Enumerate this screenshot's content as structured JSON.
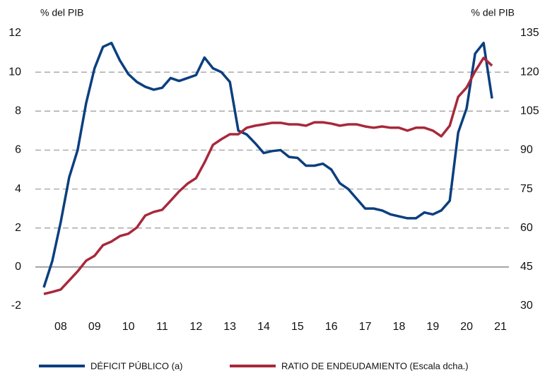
{
  "chart_data": {
    "type": "line",
    "y_label": "% del PIB",
    "y2_label": "% del PIB",
    "x": [
      2008,
      2008.25,
      2008.5,
      2008.75,
      2009,
      2009.25,
      2009.5,
      2009.75,
      2010,
      2010.25,
      2010.5,
      2010.75,
      2011,
      2011.25,
      2011.5,
      2011.75,
      2012,
      2012.25,
      2012.5,
      2012.75,
      2013,
      2013.25,
      2013.5,
      2013.75,
      2014,
      2014.25,
      2014.5,
      2014.75,
      2015,
      2015.25,
      2015.5,
      2015.75,
      2016,
      2016.25,
      2016.5,
      2016.75,
      2017,
      2017.25,
      2017.5,
      2017.75,
      2018,
      2018.25,
      2018.5,
      2018.75,
      2019,
      2019.25,
      2019.5,
      2019.75,
      2020,
      2020.25,
      2020.5,
      2020.75,
      2021,
      2021.25
    ],
    "xlim": [
      2007.75,
      2021.75
    ],
    "xticks": [
      {
        "value": 2008.5,
        "label": "08"
      },
      {
        "value": 2009.5,
        "label": "09"
      },
      {
        "value": 2010.5,
        "label": "10"
      },
      {
        "value": 2011.5,
        "label": "11"
      },
      {
        "value": 2012.5,
        "label": "12"
      },
      {
        "value": 2013.5,
        "label": "13"
      },
      {
        "value": 2014.5,
        "label": "14"
      },
      {
        "value": 2015.5,
        "label": "15"
      },
      {
        "value": 2016.5,
        "label": "16"
      },
      {
        "value": 2017.5,
        "label": "17"
      },
      {
        "value": 2018.5,
        "label": "18"
      },
      {
        "value": 2019.5,
        "label": "19"
      },
      {
        "value": 2020.5,
        "label": "20"
      },
      {
        "value": 2021.5,
        "label": "21"
      }
    ],
    "ylim": [
      -2,
      12
    ],
    "yticks": [
      -2,
      0,
      2,
      4,
      6,
      8,
      10,
      12
    ],
    "y2lim": [
      30,
      135
    ],
    "y2ticks": [
      30,
      45,
      60,
      75,
      90,
      105,
      120,
      135
    ],
    "grid": true,
    "legend": "bottom",
    "series": [
      {
        "name": "DÉFICIT PÚBLICO (a)",
        "color": "#0b3f7f",
        "values": [
          -1.05,
          0.3,
          2.3,
          4.6,
          6.0,
          8.4,
          10.2,
          11.3,
          11.5,
          10.6,
          9.9,
          9.5,
          9.25,
          9.1,
          9.2,
          9.7,
          9.55,
          9.7,
          9.85,
          10.75,
          10.2,
          10.0,
          9.5,
          7.0,
          6.8,
          6.35,
          5.85,
          5.95,
          6.0,
          5.65,
          5.6,
          5.2,
          5.2,
          5.3,
          5.0,
          4.3,
          4.0,
          3.5,
          3.0,
          3.0,
          2.9,
          2.7,
          2.6,
          2.5,
          2.5,
          2.8,
          2.7,
          2.9,
          3.4,
          6.9,
          8.15,
          10.95,
          11.5,
          8.65
        ]
      },
      {
        "name": "RATIO DE ENDEUDAMIENTO (Escala dcha.)",
        "color": "#a8283b",
        "axis": "y2",
        "values": [
          34.6,
          35.4,
          36.3,
          39.8,
          43.3,
          47.4,
          49.3,
          53.4,
          54.8,
          56.9,
          57.8,
          60.2,
          64.8,
          66.2,
          67.0,
          70.5,
          74.1,
          77.1,
          79.2,
          85.2,
          92.0,
          94.2,
          96.1,
          96.1,
          98.6,
          99.4,
          99.9,
          100.5,
          100.5,
          99.9,
          99.9,
          99.4,
          100.7,
          100.7,
          100.2,
          99.4,
          99.9,
          99.9,
          99.1,
          98.6,
          99.1,
          98.6,
          98.6,
          97.5,
          98.6,
          98.6,
          97.5,
          95.3,
          99.4,
          110.5,
          114.1,
          120.3,
          125.5,
          122.5
        ]
      }
    ]
  }
}
